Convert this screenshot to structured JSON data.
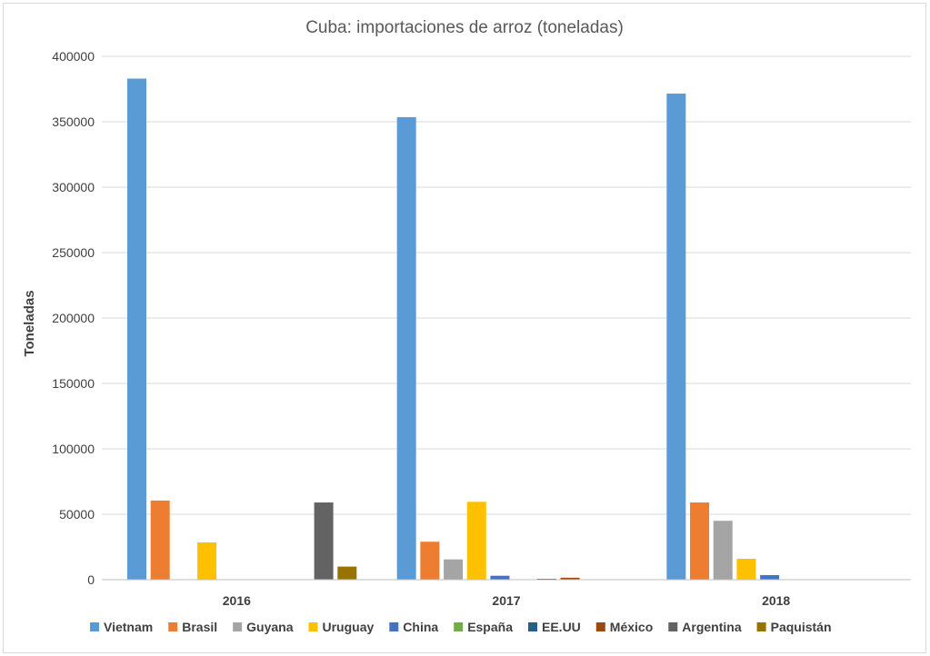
{
  "chart_data": {
    "type": "bar",
    "title": "Cuba: importaciones de arroz (toneladas)",
    "xlabel": "",
    "ylabel": "Toneladas",
    "ylim": [
      0,
      400000
    ],
    "yticks": [
      0,
      50000,
      100000,
      150000,
      200000,
      250000,
      300000,
      350000,
      400000
    ],
    "grid": true,
    "legend_position": "bottom",
    "categories": [
      "2016",
      "2017",
      "2018"
    ],
    "series": [
      {
        "name": "Vietnam",
        "color": "#5B9BD5",
        "values": [
          383000,
          353500,
          371500
        ]
      },
      {
        "name": "Brasil",
        "color": "#ED7D31",
        "values": [
          60500,
          29000,
          59000
        ]
      },
      {
        "name": "Guyana",
        "color": "#A5A5A5",
        "values": [
          0,
          15500,
          45000
        ]
      },
      {
        "name": "Uruguay",
        "color": "#FFC000",
        "values": [
          28500,
          59500,
          16000
        ]
      },
      {
        "name": "China",
        "color": "#4472C4",
        "values": [
          0,
          3000,
          3500
        ]
      },
      {
        "name": "España",
        "color": "#70AD47",
        "values": [
          0,
          0,
          0
        ]
      },
      {
        "name": "EE.UU",
        "color": "#255E91",
        "values": [
          0,
          700,
          0
        ]
      },
      {
        "name": "México",
        "color": "#9E480E",
        "values": [
          0,
          1500,
          0
        ]
      },
      {
        "name": "Argentina",
        "color": "#636363",
        "values": [
          59000,
          0,
          0
        ]
      },
      {
        "name": "Paquistán",
        "color": "#997300",
        "values": [
          10000,
          0,
          0
        ]
      }
    ]
  }
}
